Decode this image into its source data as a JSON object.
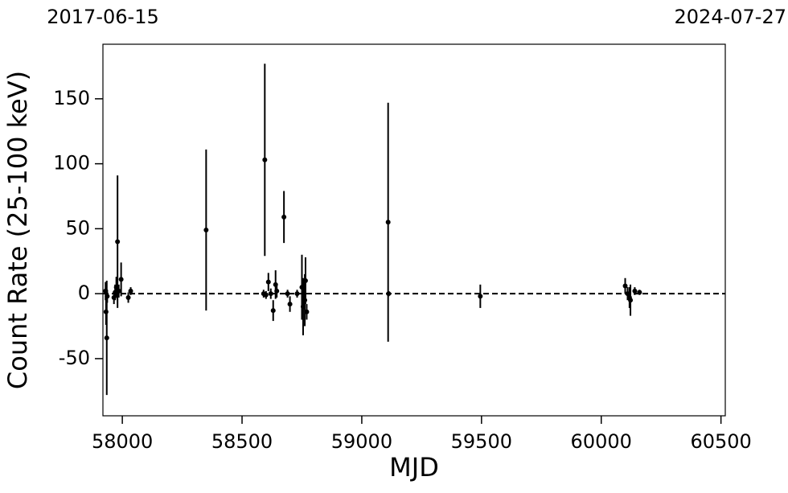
{
  "chart_data": {
    "type": "scatter",
    "x_label": "MJD",
    "y_label": "Count Rate (25-100 keV)",
    "color": "#000000",
    "x": [
      57930,
      57932,
      57935,
      57937,
      57965,
      57970,
      57975,
      57980,
      57985,
      57995,
      58025,
      58035,
      58350,
      58590,
      58595,
      58600,
      58610,
      58620,
      58630,
      58640,
      58645,
      58675,
      58690,
      58700,
      58730,
      58750,
      58755,
      58758,
      58762,
      58765,
      58770,
      59110,
      59112,
      59495,
      60100,
      60110,
      60118,
      60122,
      60140,
      60160
    ],
    "values": [
      2,
      -14,
      -34,
      -2,
      -3,
      1,
      5,
      40,
      2,
      11,
      -3,
      2,
      49,
      0,
      103,
      -1,
      9,
      0,
      -13,
      7,
      2,
      59,
      0,
      -8,
      0,
      5,
      -10,
      0,
      -5,
      10,
      -14,
      55,
      0,
      -2,
      6,
      0,
      -3,
      -5,
      2,
      1
    ],
    "errors": [
      7,
      10,
      44,
      5,
      5,
      6,
      8,
      51,
      5,
      13,
      4,
      3,
      62,
      3,
      74,
      3,
      7,
      4,
      8,
      11,
      5,
      20,
      3,
      6,
      3,
      25,
      22,
      10,
      20,
      18,
      6,
      92,
      2,
      9,
      6,
      5,
      8,
      12,
      3,
      2
    ],
    "reference_line": 0,
    "xlim": [
      57919,
      60518
    ],
    "ylim": [
      -94,
      192
    ],
    "xticks": [
      58000,
      58500,
      59000,
      59500,
      60000,
      60500
    ],
    "yticks": [
      -50,
      0,
      50,
      100,
      150
    ],
    "top_xticks": [
      {
        "value": 57919,
        "label": "2017-06-15"
      },
      {
        "value": 60518,
        "label": "2024-07-27"
      }
    ]
  }
}
